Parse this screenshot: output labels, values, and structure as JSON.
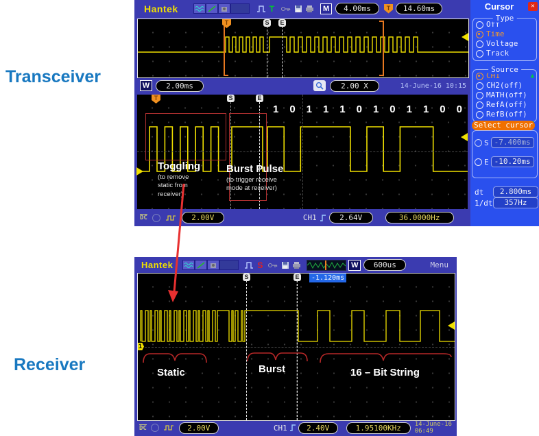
{
  "page": {
    "transceiver_label": "Transceiver",
    "receiver_label": "Receiver"
  },
  "colors": {
    "waveform_yellow": "#f5e500",
    "annotation_red": "#cc2222",
    "chrome_blue": "#3b3bb0",
    "sidebar_blue": "#2a50ee",
    "select_cursor_orange": "#f07000",
    "page_label_blue": "#1878c0"
  },
  "scope1": {
    "brand": "Hantek",
    "trigger_letter": "T",
    "m_label": "M",
    "main_timebase": "4.00ms",
    "trigger_offset": "14.60ms",
    "window_label": "W",
    "window_timebase": "2.00ms",
    "zoom_factor": "2.00 X",
    "datetime": "14-June-16 10:15",
    "cursor_s": "S",
    "cursor_e": "E",
    "bits": [
      "1",
      "0",
      "1",
      "1",
      "1",
      "0",
      "1",
      "0",
      "1",
      "1",
      "0",
      "0"
    ],
    "annotations": {
      "toggling_title": "Toggling",
      "toggling_sub": "(to remove\nstatic from\nreceiver)",
      "burst_title": "Burst Pulse",
      "burst_sub": "(to trigger receive\nmode at receiver)"
    },
    "bottom": {
      "coupling": "DC",
      "volts_div": "2.00V",
      "channel": "CH1",
      "trigger_level": "2.64V",
      "frequency": "36.0000Hz"
    }
  },
  "scope2": {
    "brand": "Hantek",
    "trigger_letter": "S",
    "window_label": "W",
    "window_timebase": "600us",
    "menu_label": "Menu",
    "cursor_delta": "-1.120ms",
    "cursor_s": "S",
    "cursor_e": "E",
    "channel_marker": "1",
    "labels": {
      "static": "Static",
      "burst": "Burst",
      "bitstring": "16 – Bit String"
    },
    "bottom": {
      "coupling": "DC",
      "volts_div": "2.00V",
      "channel": "CH1",
      "trigger_level": "2.40V",
      "frequency": "1.95100KHz",
      "datetime": "14-June-16 06:49"
    }
  },
  "sidebar": {
    "title": "Cursor",
    "type_legend": "Type",
    "type_options": [
      "Off",
      "Time",
      "Voltage",
      "Track"
    ],
    "type_selected": "Time",
    "source_legend": "Source",
    "source_options": [
      "CH1",
      "CH2(off)",
      "MATH(off)",
      "RefA(off)",
      "RefB(off)"
    ],
    "source_selected": "CH1",
    "select_cursor": "Select cursor",
    "s_label": "S",
    "s_value": "-7.400ms",
    "e_label": "E",
    "e_value": "-10.20ms",
    "dt_label": "dt",
    "dt_value": "2.800ms",
    "invdt_label": "1/dt",
    "invdt_value": "357Hz"
  }
}
